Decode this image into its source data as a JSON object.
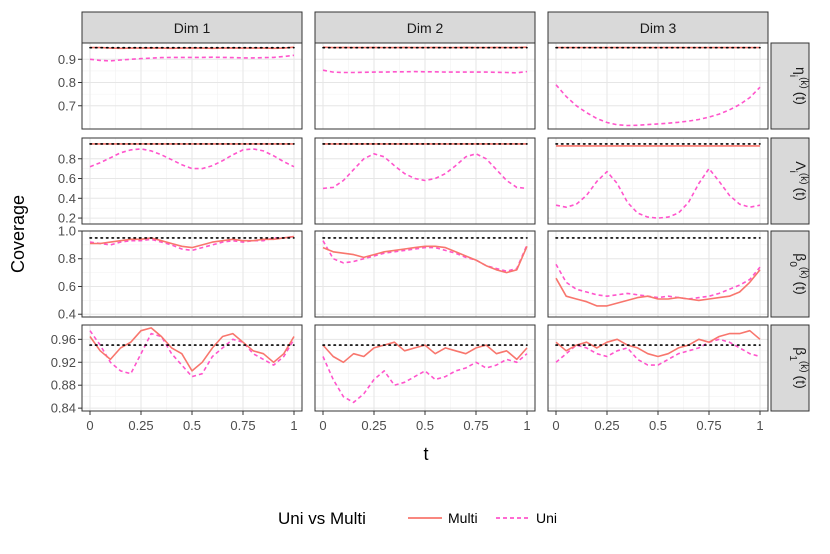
{
  "chart_data": {
    "type": "line",
    "xlabel": "t",
    "ylabel": "Coverage",
    "reference_line": 0.95,
    "columns": [
      "Dim 1",
      "Dim 2",
      "Dim 3"
    ],
    "rows": [
      {
        "id": "eta",
        "label_main": "η",
        "label_sub": "i",
        "label_sup": "(k)",
        "label_tail": "(t)",
        "ylim": [
          0.6,
          0.97
        ],
        "ticks": [
          0.7,
          0.8,
          0.9
        ],
        "tick_labels": [
          "0.7",
          "0.8",
          "0.9"
        ]
      },
      {
        "id": "lambda",
        "label_main": "Λ",
        "label_sub": "i",
        "label_sup": "(k)",
        "label_tail": "(t)",
        "ylim": [
          0.14,
          1.01
        ],
        "ticks": [
          0.2,
          0.4,
          0.6,
          0.8
        ],
        "tick_labels": [
          "0.2",
          "0.4",
          "0.6",
          "0.8"
        ]
      },
      {
        "id": "beta0",
        "label_main": "β",
        "label_sub": "0",
        "label_sup": "(k)",
        "label_tail": "(t)",
        "ylim": [
          0.38,
          1.0
        ],
        "ticks": [
          0.4,
          0.6,
          0.8,
          1.0
        ],
        "tick_labels": [
          "0.4",
          "0.6",
          "0.8",
          "1.0"
        ]
      },
      {
        "id": "beta1",
        "label_main": "β",
        "label_sub": "1",
        "label_sup": "(k)",
        "label_tail": "(t)",
        "ylim": [
          0.835,
          0.985
        ],
        "ticks": [
          0.84,
          0.88,
          0.92,
          0.96
        ],
        "tick_labels": [
          "0.84",
          "0.88",
          "0.92",
          "0.96"
        ]
      }
    ],
    "x_ticks": [
      0,
      0.25,
      0.5,
      0.75,
      1
    ],
    "x_tick_labels": [
      "0",
      "0.25",
      "0.5",
      "0.75",
      "1"
    ],
    "legend": {
      "title": "Uni vs Multi",
      "position": "bottom",
      "entries": [
        {
          "name": "Multi",
          "color": "#F8766D",
          "dash": "solid"
        },
        {
          "name": "Uni",
          "color": "#FF55CC",
          "dash": "dashed"
        }
      ]
    },
    "x": [
      0,
      0.05,
      0.1,
      0.15,
      0.2,
      0.25,
      0.3,
      0.35,
      0.4,
      0.45,
      0.5,
      0.55,
      0.6,
      0.65,
      0.7,
      0.75,
      0.8,
      0.85,
      0.9,
      0.95,
      1
    ],
    "panels": [
      {
        "row": "eta",
        "col": "Dim 1",
        "Multi": [
          0.95,
          0.95,
          0.948,
          0.947,
          0.948,
          0.948,
          0.949,
          0.948,
          0.947,
          0.948,
          0.949,
          0.948,
          0.947,
          0.948,
          0.949,
          0.948,
          0.948,
          0.948,
          0.947,
          0.948,
          0.952
        ],
        "Uni": [
          0.9,
          0.895,
          0.893,
          0.897,
          0.9,
          0.903,
          0.905,
          0.907,
          0.908,
          0.908,
          0.908,
          0.908,
          0.909,
          0.908,
          0.907,
          0.906,
          0.906,
          0.907,
          0.908,
          0.912,
          0.917
        ]
      },
      {
        "row": "eta",
        "col": "Dim 2",
        "Multi": [
          0.952,
          0.95,
          0.951,
          0.95,
          0.95,
          0.951,
          0.95,
          0.95,
          0.951,
          0.95,
          0.95,
          0.951,
          0.95,
          0.95,
          0.951,
          0.95,
          0.95,
          0.951,
          0.95,
          0.95,
          0.952
        ],
        "Uni": [
          0.853,
          0.845,
          0.843,
          0.843,
          0.844,
          0.845,
          0.845,
          0.846,
          0.846,
          0.847,
          0.846,
          0.846,
          0.845,
          0.845,
          0.845,
          0.845,
          0.845,
          0.844,
          0.843,
          0.842,
          0.847
        ]
      },
      {
        "row": "eta",
        "col": "Dim 3",
        "Multi": [
          0.95,
          0.95,
          0.95,
          0.95,
          0.95,
          0.95,
          0.95,
          0.95,
          0.95,
          0.95,
          0.95,
          0.95,
          0.95,
          0.95,
          0.95,
          0.95,
          0.95,
          0.95,
          0.95,
          0.95,
          0.95
        ],
        "Uni": [
          0.79,
          0.74,
          0.7,
          0.67,
          0.645,
          0.628,
          0.618,
          0.615,
          0.616,
          0.619,
          0.622,
          0.625,
          0.629,
          0.634,
          0.641,
          0.651,
          0.664,
          0.682,
          0.705,
          0.735,
          0.78
        ]
      },
      {
        "row": "lambda",
        "col": "Dim 1",
        "Multi": [
          0.95,
          0.95,
          0.95,
          0.95,
          0.95,
          0.95,
          0.95,
          0.95,
          0.95,
          0.95,
          0.95,
          0.95,
          0.95,
          0.95,
          0.95,
          0.95,
          0.95,
          0.95,
          0.95,
          0.95,
          0.95
        ],
        "Uni": [
          0.72,
          0.76,
          0.81,
          0.86,
          0.89,
          0.9,
          0.88,
          0.84,
          0.79,
          0.74,
          0.7,
          0.7,
          0.73,
          0.78,
          0.84,
          0.89,
          0.9,
          0.88,
          0.83,
          0.77,
          0.72
        ]
      },
      {
        "row": "lambda",
        "col": "Dim 2",
        "Multi": [
          0.95,
          0.95,
          0.95,
          0.95,
          0.95,
          0.95,
          0.95,
          0.95,
          0.95,
          0.95,
          0.95,
          0.95,
          0.95,
          0.95,
          0.95,
          0.95,
          0.95,
          0.95,
          0.95,
          0.95,
          0.95
        ],
        "Uni": [
          0.5,
          0.51,
          0.58,
          0.69,
          0.8,
          0.85,
          0.82,
          0.73,
          0.65,
          0.6,
          0.58,
          0.6,
          0.65,
          0.73,
          0.82,
          0.85,
          0.8,
          0.69,
          0.58,
          0.51,
          0.5
        ]
      },
      {
        "row": "lambda",
        "col": "Dim 3",
        "Multi": [
          0.93,
          0.93,
          0.93,
          0.93,
          0.93,
          0.93,
          0.93,
          0.93,
          0.93,
          0.93,
          0.93,
          0.93,
          0.93,
          0.93,
          0.93,
          0.93,
          0.93,
          0.93,
          0.93,
          0.93,
          0.93
        ],
        "Uni": [
          0.33,
          0.31,
          0.34,
          0.43,
          0.57,
          0.67,
          0.55,
          0.36,
          0.25,
          0.21,
          0.2,
          0.21,
          0.25,
          0.36,
          0.55,
          0.7,
          0.57,
          0.43,
          0.34,
          0.31,
          0.33
        ]
      },
      {
        "row": "beta0",
        "col": "Dim 1",
        "Multi": [
          0.91,
          0.91,
          0.92,
          0.93,
          0.94,
          0.94,
          0.95,
          0.93,
          0.91,
          0.89,
          0.88,
          0.9,
          0.92,
          0.93,
          0.94,
          0.93,
          0.93,
          0.94,
          0.94,
          0.95,
          0.96
        ],
        "Uni": [
          0.92,
          0.91,
          0.9,
          0.92,
          0.93,
          0.93,
          0.94,
          0.92,
          0.9,
          0.87,
          0.86,
          0.88,
          0.9,
          0.92,
          0.93,
          0.92,
          0.93,
          0.93,
          0.95,
          0.95,
          0.96
        ]
      },
      {
        "row": "beta0",
        "col": "Dim 2",
        "Multi": [
          0.88,
          0.85,
          0.84,
          0.83,
          0.81,
          0.83,
          0.85,
          0.86,
          0.87,
          0.88,
          0.89,
          0.89,
          0.88,
          0.85,
          0.82,
          0.79,
          0.75,
          0.72,
          0.7,
          0.72,
          0.89
        ],
        "Uni": [
          0.93,
          0.8,
          0.77,
          0.78,
          0.8,
          0.82,
          0.84,
          0.85,
          0.86,
          0.87,
          0.88,
          0.88,
          0.86,
          0.84,
          0.81,
          0.79,
          0.75,
          0.73,
          0.71,
          0.73,
          0.9
        ]
      },
      {
        "row": "beta0",
        "col": "Dim 3",
        "Multi": [
          0.66,
          0.53,
          0.51,
          0.49,
          0.46,
          0.46,
          0.48,
          0.5,
          0.52,
          0.53,
          0.51,
          0.51,
          0.52,
          0.51,
          0.5,
          0.51,
          0.52,
          0.53,
          0.56,
          0.63,
          0.72
        ],
        "Uni": [
          0.76,
          0.63,
          0.58,
          0.56,
          0.54,
          0.53,
          0.54,
          0.55,
          0.54,
          0.53,
          0.52,
          0.53,
          0.52,
          0.51,
          0.52,
          0.53,
          0.55,
          0.58,
          0.61,
          0.65,
          0.74
        ]
      },
      {
        "row": "beta1",
        "col": "Dim 1",
        "Multi": [
          0.965,
          0.94,
          0.925,
          0.945,
          0.955,
          0.975,
          0.98,
          0.965,
          0.945,
          0.935,
          0.905,
          0.92,
          0.945,
          0.965,
          0.97,
          0.955,
          0.94,
          0.935,
          0.92,
          0.935,
          0.965
        ],
        "Uni": [
          0.975,
          0.95,
          0.92,
          0.905,
          0.9,
          0.935,
          0.97,
          0.965,
          0.935,
          0.915,
          0.895,
          0.9,
          0.93,
          0.945,
          0.96,
          0.955,
          0.935,
          0.925,
          0.915,
          0.93,
          0.96
        ]
      },
      {
        "row": "beta1",
        "col": "Dim 2",
        "Multi": [
          0.95,
          0.93,
          0.92,
          0.935,
          0.93,
          0.945,
          0.95,
          0.955,
          0.94,
          0.945,
          0.95,
          0.935,
          0.945,
          0.94,
          0.935,
          0.945,
          0.95,
          0.935,
          0.94,
          0.925,
          0.945
        ],
        "Uni": [
          0.93,
          0.89,
          0.86,
          0.85,
          0.865,
          0.89,
          0.905,
          0.88,
          0.885,
          0.895,
          0.905,
          0.89,
          0.895,
          0.905,
          0.91,
          0.92,
          0.91,
          0.915,
          0.925,
          0.92,
          0.935
        ]
      },
      {
        "row": "beta1",
        "col": "Dim 3",
        "Multi": [
          0.955,
          0.94,
          0.95,
          0.955,
          0.945,
          0.955,
          0.96,
          0.95,
          0.945,
          0.935,
          0.93,
          0.935,
          0.945,
          0.95,
          0.96,
          0.955,
          0.965,
          0.97,
          0.97,
          0.975,
          0.96
        ],
        "Uni": [
          0.92,
          0.935,
          0.95,
          0.945,
          0.935,
          0.93,
          0.94,
          0.945,
          0.925,
          0.915,
          0.915,
          0.925,
          0.935,
          0.94,
          0.945,
          0.955,
          0.96,
          0.955,
          0.945,
          0.935,
          0.93
        ]
      }
    ]
  }
}
